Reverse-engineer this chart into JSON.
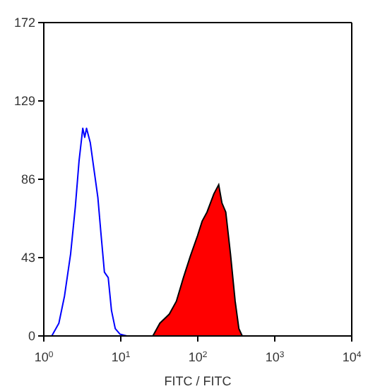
{
  "chart_data": {
    "type": "line",
    "xlabel": "FITC / FITC",
    "log": "x",
    "xlim": [
      1,
      10000
    ],
    "xticks": [
      {
        "value": 1,
        "label": "10$^{0}$"
      },
      {
        "value": 10,
        "label": "10$^{1}$"
      },
      {
        "value": 100,
        "label": "10$^{2}$"
      },
      {
        "value": 1000,
        "label": "10$^{3}$"
      },
      {
        "value": 10000,
        "label": "10$^{4}$"
      }
    ],
    "ylim": [
      0,
      172
    ],
    "yticks": [
      0,
      43,
      86,
      129,
      172
    ],
    "series": [
      {
        "type": "line",
        "color": "#0000ff",
        "x": [
          1.27,
          1.57,
          1.86,
          2.23,
          2.57,
          2.87,
          3.21,
          3.4,
          3.59,
          4.02,
          4.5,
          5.04,
          5.56,
          6.13,
          6.87,
          7.57,
          8.48,
          9.75,
          12
        ],
        "values": [
          0,
          7,
          22,
          45,
          71,
          96,
          114,
          109,
          114,
          106,
          91,
          76,
          55,
          35,
          32,
          14,
          4,
          1,
          0
        ]
      },
      {
        "type": "area",
        "color": "#ff0000",
        "x": [
          26.1,
          32.2,
          42.7,
          52.7,
          65.1,
          80.4,
          99.3,
          114,
          132,
          162,
          187,
          206,
          231,
          266,
          306,
          342,
          378
        ],
        "values": [
          0,
          7,
          12,
          19,
          32,
          44,
          55,
          63,
          68,
          78,
          83,
          73,
          68,
          45,
          19,
          4,
          0
        ]
      }
    ]
  }
}
